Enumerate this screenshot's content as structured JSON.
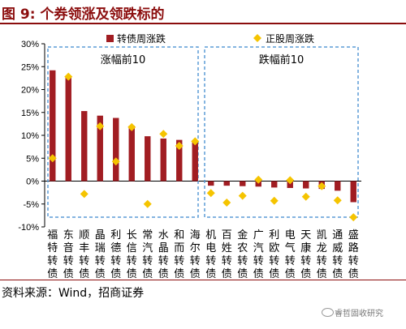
{
  "title": "图 9:  个券领涨及领跌标的",
  "source": "资料来源：Wind，招商证券",
  "watermark": "睿哲固收研究",
  "chart_data": {
    "type": "bar",
    "ylim": [
      -10,
      30
    ],
    "y_ticks": [
      -10,
      -5,
      0,
      5,
      10,
      15,
      20,
      25,
      30
    ],
    "y_tick_labels": [
      "-10%",
      "-5%",
      "0%",
      "5%",
      "10%",
      "15%",
      "20%",
      "25%",
      "30%"
    ],
    "categories": [
      "福特转债",
      "东音转债",
      "顺丰转债",
      "晶瑞转债",
      "利德转债",
      "长信转债",
      "常汽转债",
      "水晶转债",
      "和而转债",
      "海尔转债",
      "机电转债",
      "百姓转债",
      "金农转债",
      "广汽转债",
      "利欧转债",
      "电气转债",
      "天康转债",
      "凯龙转债",
      "通威转债",
      "盛路转债"
    ],
    "series": [
      {
        "name": "转债周涨跌",
        "type": "bar",
        "color": "#a11d22",
        "values": [
          24.2,
          22.8,
          15.3,
          14.3,
          13.8,
          12.1,
          9.8,
          9.3,
          9.0,
          8.5,
          -1.0,
          -1.0,
          -1.1,
          -1.2,
          -1.4,
          -1.5,
          -1.6,
          -1.7,
          -2.1,
          -4.6
        ]
      },
      {
        "name": "正股周涨跌",
        "type": "scatter",
        "color": "#f5c400",
        "values": [
          5.0,
          22.8,
          -2.8,
          12.0,
          4.3,
          11.8,
          -5.0,
          10.3,
          7.7,
          8.7,
          -2.6,
          -4.7,
          -3.2,
          0.3,
          -4.3,
          0.2,
          -3.4,
          -1.1,
          -4.2,
          -7.9
        ]
      }
    ],
    "legend_position": "top",
    "annotations": [
      {
        "text": "涨幅前10",
        "group": "left"
      },
      {
        "text": "跌幅前10",
        "group": "right"
      }
    ]
  }
}
